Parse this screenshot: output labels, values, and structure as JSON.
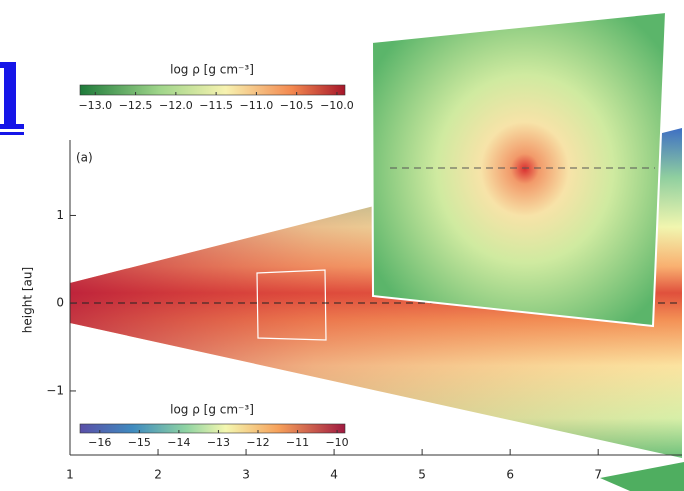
{
  "chart_data": {
    "type": "image",
    "panel_label": "(a)",
    "ylabel": "height [au]",
    "xlim": [
      1,
      7.85
    ],
    "ylim": [
      -1.73,
      1.86
    ],
    "xticks": [
      1,
      2,
      3,
      4,
      5,
      6,
      7
    ],
    "yticks": [
      {
        "value": 1,
        "label": "1"
      },
      {
        "value": 0,
        "label": "0"
      },
      {
        "value": -1,
        "label": "−1"
      }
    ],
    "colorbars": [
      {
        "label": "log ρ [g cm⁻³]",
        "lim": [
          -13.19,
          -9.9
        ],
        "ticks": [
          {
            "value": -13,
            "label": "−13.0"
          },
          {
            "value": -12.5,
            "label": "−12.5"
          },
          {
            "value": -12,
            "label": "−12.0"
          },
          {
            "value": -11.5,
            "label": "−11.5"
          },
          {
            "value": -11,
            "label": "−11.0"
          },
          {
            "value": -10.5,
            "label": "−10.5"
          },
          {
            "value": -10,
            "label": "−10.0"
          }
        ]
      },
      {
        "label": "log ρ [g cm⁻³]",
        "lim": [
          -16.5,
          -9.8
        ],
        "ticks": [
          {
            "value": -16,
            "label": "−16"
          },
          {
            "value": -15,
            "label": "−15"
          },
          {
            "value": -14,
            "label": "−14"
          },
          {
            "value": -13,
            "label": "−13"
          },
          {
            "value": -12,
            "label": "−12"
          },
          {
            "value": -11,
            "label": "−11"
          },
          {
            "value": -10,
            "label": "−10"
          }
        ]
      }
    ]
  }
}
